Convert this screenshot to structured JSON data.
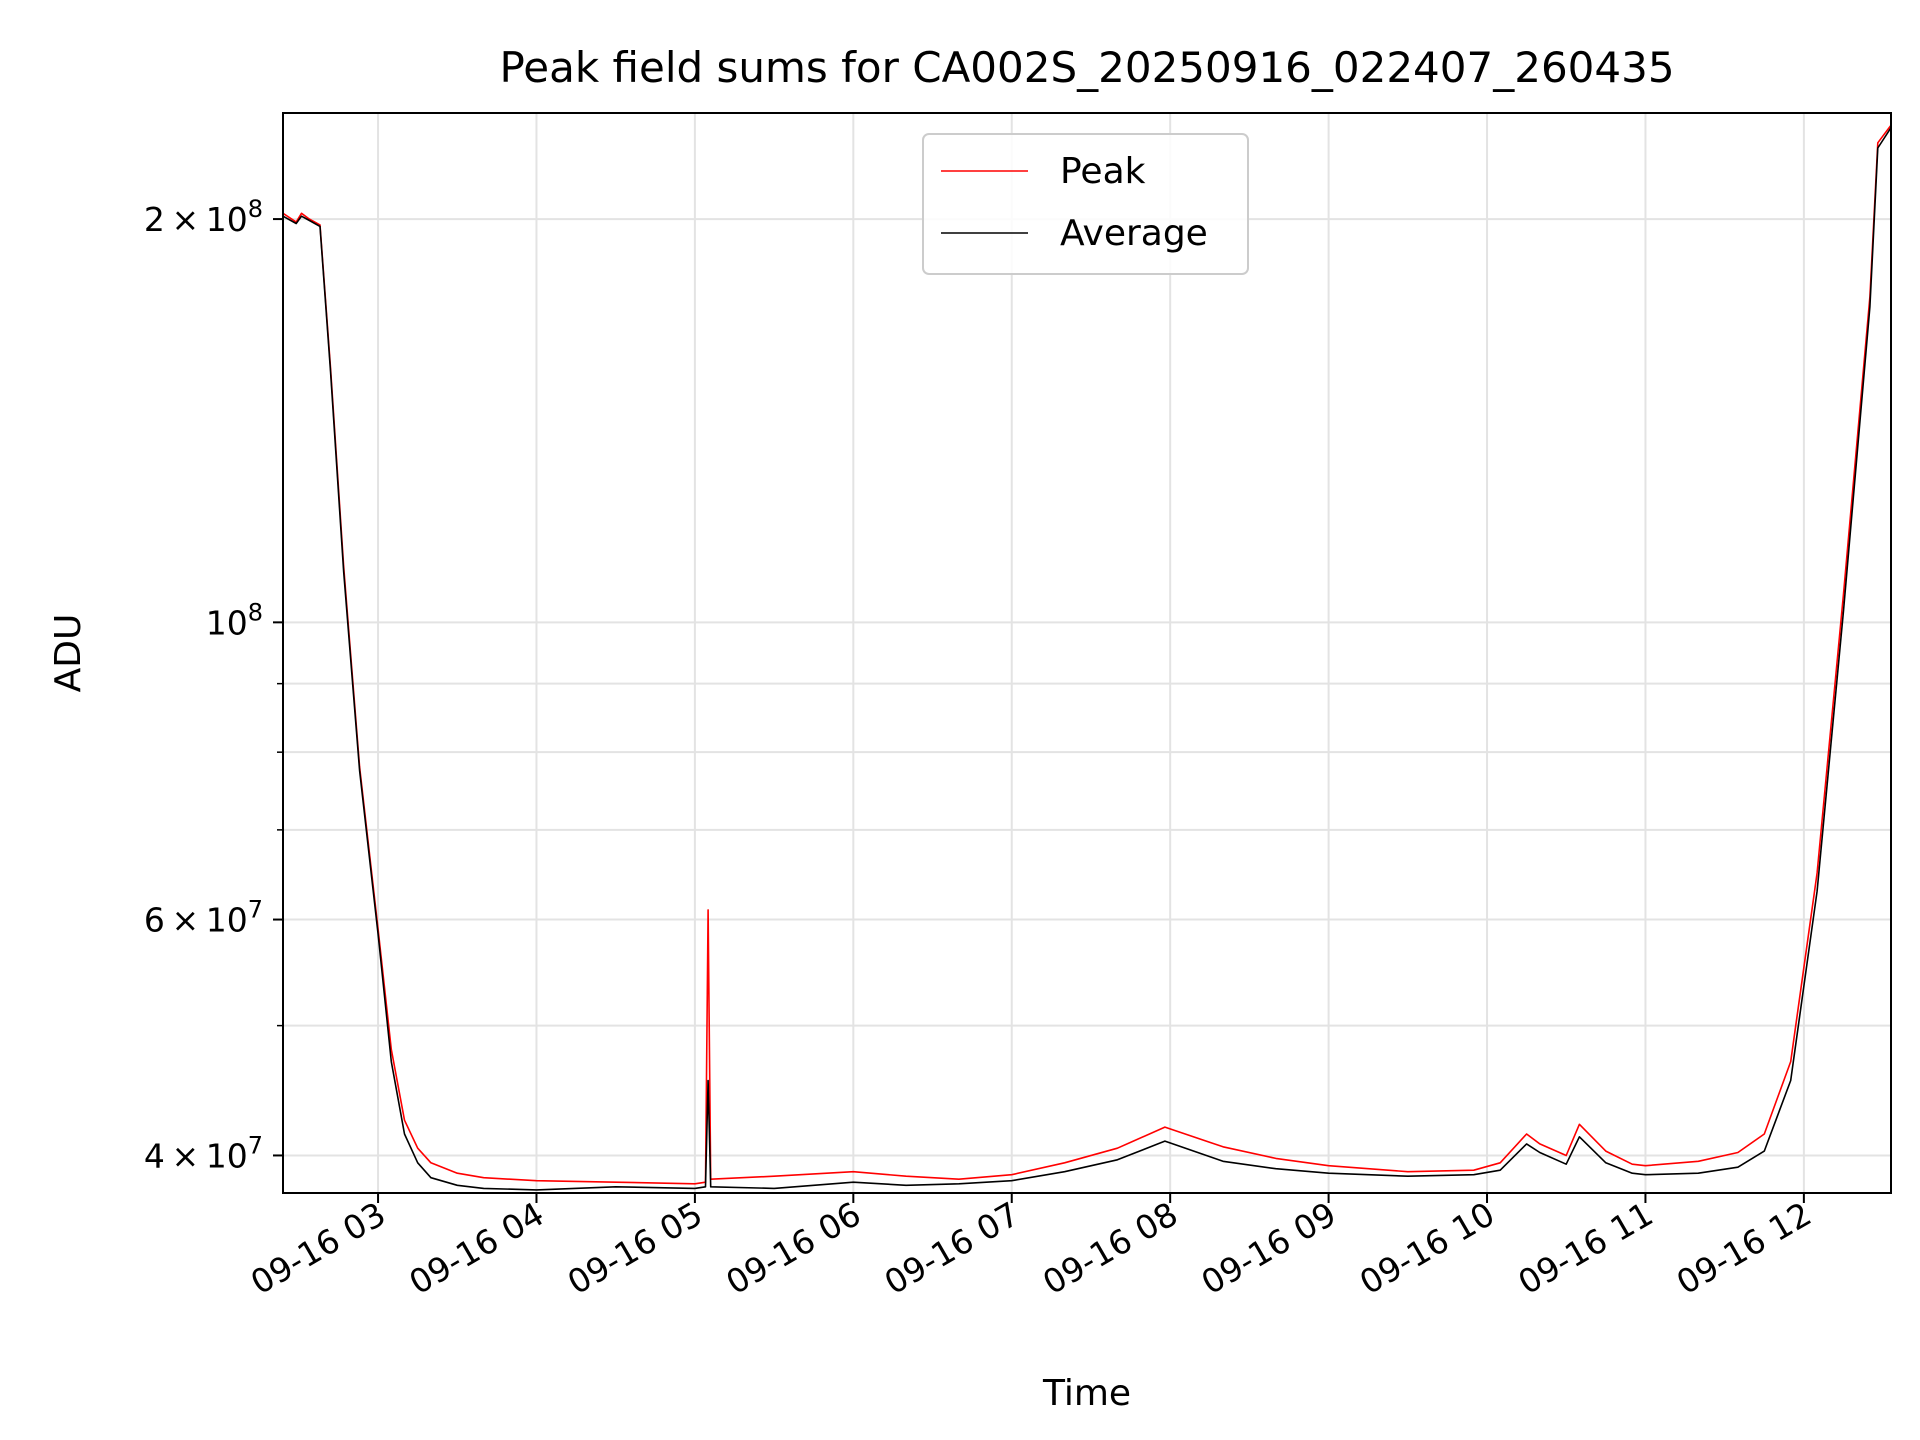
{
  "chart_data": {
    "type": "line",
    "title": "Peak field sums for CA002S_20250916_022407_260435",
    "xlabel": "Time",
    "ylabel": "ADU",
    "y_scale": "log",
    "grid": true,
    "legend_position": "top-center",
    "x_tick_labels": [
      "09-16 03",
      "09-16 04",
      "09-16 05",
      "09-16 06",
      "09-16 07",
      "09-16 08",
      "09-16 09",
      "09-16 10",
      "09-16 11",
      "09-16 12"
    ],
    "x_tick_times": [
      "2025-09-16 03:00",
      "2025-09-16 04:00",
      "2025-09-16 05:00",
      "2025-09-16 06:00",
      "2025-09-16 07:00",
      "2025-09-16 08:00",
      "2025-09-16 09:00",
      "2025-09-16 10:00",
      "2025-09-16 11:00",
      "2025-09-16 12:00"
    ],
    "xlim": [
      "2025-09-16 02:24",
      "2025-09-16 12:33"
    ],
    "ylim": [
      37500000,
      240000000
    ],
    "y_major_ticks": [
      {
        "value": 40000000,
        "mantissa": "4",
        "base": "10",
        "exponent": "7"
      },
      {
        "value": 60000000,
        "mantissa": "6",
        "base": "10",
        "exponent": "7"
      },
      {
        "value": 100000000,
        "mantissa": "",
        "base": "10",
        "exponent": "8"
      },
      {
        "value": 200000000,
        "mantissa": "2",
        "base": "10",
        "exponent": "8"
      }
    ],
    "y_minor_gridlines": [
      50000000,
      70000000,
      80000000,
      90000000
    ],
    "series": [
      {
        "name": "Peak",
        "color": "#ff0000",
        "times": [
          "2025-09-16 02:24",
          "2025-09-16 02:29",
          "2025-09-16 02:31",
          "2025-09-16 02:34",
          "2025-09-16 02:38",
          "2025-09-16 02:42",
          "2025-09-16 02:47",
          "2025-09-16 02:53",
          "2025-09-16 03:00",
          "2025-09-16 03:05",
          "2025-09-16 03:10",
          "2025-09-16 03:15",
          "2025-09-16 03:20",
          "2025-09-16 03:30",
          "2025-09-16 03:40",
          "2025-09-16 04:00",
          "2025-09-16 04:30",
          "2025-09-16 05:00",
          "2025-09-16 05:04",
          "2025-09-16 05:05",
          "2025-09-16 05:06",
          "2025-09-16 05:30",
          "2025-09-16 06:00",
          "2025-09-16 06:20",
          "2025-09-16 06:40",
          "2025-09-16 07:00",
          "2025-09-16 07:20",
          "2025-09-16 07:40",
          "2025-09-16 07:58",
          "2025-09-16 08:20",
          "2025-09-16 08:40",
          "2025-09-16 09:00",
          "2025-09-16 09:30",
          "2025-09-16 09:55",
          "2025-09-16 10:05",
          "2025-09-16 10:15",
          "2025-09-16 10:20",
          "2025-09-16 10:30",
          "2025-09-16 10:35",
          "2025-09-16 10:45",
          "2025-09-16 10:55",
          "2025-09-16 11:00",
          "2025-09-16 11:20",
          "2025-09-16 11:35",
          "2025-09-16 11:45",
          "2025-09-16 11:55",
          "2025-09-16 12:05",
          "2025-09-16 12:15",
          "2025-09-16 12:25",
          "2025-09-16 12:28",
          "2025-09-16 12:33"
        ],
        "values": [
          202000000,
          199000000,
          202000000,
          200000000,
          198000000,
          155000000,
          110000000,
          78000000,
          59000000,
          48000000,
          42500000,
          40500000,
          39500000,
          38800000,
          38500000,
          38300000,
          38200000,
          38100000,
          38200000,
          61000000,
          38400000,
          38600000,
          38900000,
          38600000,
          38400000,
          38700000,
          39500000,
          40500000,
          42000000,
          40600000,
          39800000,
          39300000,
          38900000,
          39000000,
          39500000,
          41500000,
          40800000,
          40000000,
          42200000,
          40300000,
          39400000,
          39300000,
          39600000,
          40200000,
          41500000,
          47000000,
          65000000,
          105000000,
          175000000,
          228000000,
          235000000
        ]
      },
      {
        "name": "Average",
        "color": "#000000",
        "times": [
          "2025-09-16 02:24",
          "2025-09-16 02:29",
          "2025-09-16 02:31",
          "2025-09-16 02:34",
          "2025-09-16 02:38",
          "2025-09-16 02:42",
          "2025-09-16 02:47",
          "2025-09-16 02:53",
          "2025-09-16 03:00",
          "2025-09-16 03:05",
          "2025-09-16 03:10",
          "2025-09-16 03:15",
          "2025-09-16 03:20",
          "2025-09-16 03:30",
          "2025-09-16 03:40",
          "2025-09-16 04:00",
          "2025-09-16 04:30",
          "2025-09-16 05:00",
          "2025-09-16 05:04",
          "2025-09-16 05:05",
          "2025-09-16 05:06",
          "2025-09-16 05:30",
          "2025-09-16 06:00",
          "2025-09-16 06:20",
          "2025-09-16 06:40",
          "2025-09-16 07:00",
          "2025-09-16 07:20",
          "2025-09-16 07:40",
          "2025-09-16 07:58",
          "2025-09-16 08:20",
          "2025-09-16 08:40",
          "2025-09-16 09:00",
          "2025-09-16 09:30",
          "2025-09-16 09:55",
          "2025-09-16 10:05",
          "2025-09-16 10:15",
          "2025-09-16 10:20",
          "2025-09-16 10:30",
          "2025-09-16 10:35",
          "2025-09-16 10:45",
          "2025-09-16 10:55",
          "2025-09-16 11:00",
          "2025-09-16 11:20",
          "2025-09-16 11:35",
          "2025-09-16 11:45",
          "2025-09-16 11:55",
          "2025-09-16 12:05",
          "2025-09-16 12:15",
          "2025-09-16 12:25",
          "2025-09-16 12:28",
          "2025-09-16 12:33"
        ],
        "values": [
          201000000,
          198500000,
          201000000,
          199500000,
          197500000,
          154000000,
          109000000,
          77500000,
          58500000,
          47000000,
          41500000,
          39500000,
          38500000,
          38000000,
          37800000,
          37700000,
          37900000,
          37800000,
          37900000,
          45500000,
          37900000,
          37800000,
          38200000,
          38000000,
          38100000,
          38300000,
          38900000,
          39700000,
          41000000,
          39600000,
          39100000,
          38800000,
          38600000,
          38700000,
          39000000,
          40800000,
          40200000,
          39400000,
          41300000,
          39500000,
          38800000,
          38700000,
          38800000,
          39200000,
          40300000,
          45500000,
          63000000,
          102000000,
          172000000,
          226000000,
          234000000
        ]
      }
    ]
  }
}
